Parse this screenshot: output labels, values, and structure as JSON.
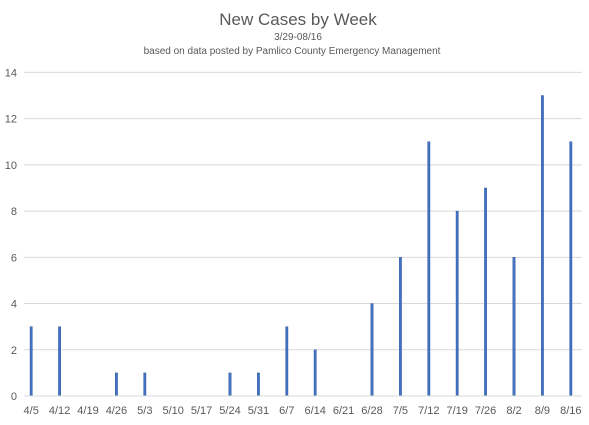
{
  "chart_data": {
    "type": "bar",
    "title": "New Cases by Week",
    "subtitle_line1": "3/29-08/16",
    "subtitle_line2": "based on data posted by Pamlico County Emergency Management",
    "xlabel": "",
    "ylabel": "",
    "ylim": [
      0,
      14
    ],
    "yticks": [
      0,
      2,
      4,
      6,
      8,
      10,
      12,
      14
    ],
    "grid": true,
    "categories": [
      "4/5",
      "4/12",
      "4/19",
      "4/26",
      "5/3",
      "5/10",
      "5/17",
      "5/24",
      "5/31",
      "6/7",
      "6/14",
      "6/21",
      "6/28",
      "7/5",
      "7/12",
      "7/19",
      "7/26",
      "8/2",
      "8/9",
      "8/16"
    ],
    "values": [
      3,
      3,
      0,
      1,
      1,
      0,
      0,
      1,
      1,
      3,
      2,
      0,
      4,
      6,
      11,
      8,
      9,
      6,
      13,
      11
    ],
    "bar_color": "#4472c4",
    "grid_color": "#d9d9d9",
    "text_color": "#595959"
  }
}
